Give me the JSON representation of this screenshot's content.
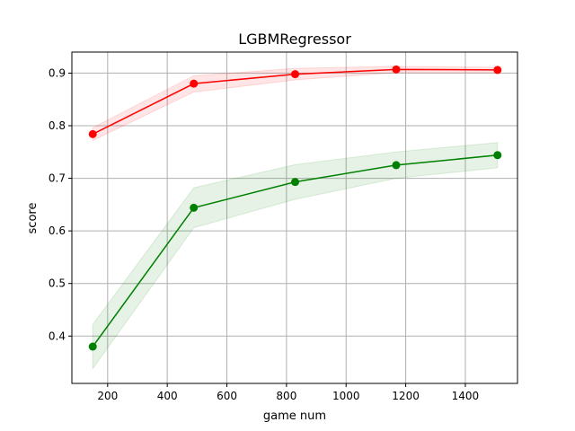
{
  "chart_data": {
    "type": "line",
    "title": "LGBMRegressor",
    "xlabel": "game num",
    "ylabel": "score",
    "xlim": [
      80,
      1575
    ],
    "ylim": [
      0.31,
      0.94
    ],
    "xticks": [
      200,
      400,
      600,
      800,
      1000,
      1200,
      1400
    ],
    "yticks": [
      0.4,
      0.5,
      0.6,
      0.7,
      0.8,
      0.9
    ],
    "grid": true,
    "x": [
      150,
      489,
      829,
      1168,
      1508
    ],
    "series": [
      {
        "color": "#ff0000",
        "values": [
          0.784,
          0.88,
          0.898,
          0.907,
          0.906
        ],
        "band_lower": [
          0.772,
          0.864,
          0.887,
          0.901,
          0.901
        ],
        "band_upper": [
          0.796,
          0.895,
          0.909,
          0.913,
          0.911
        ]
      },
      {
        "color": "#008000",
        "values": [
          0.38,
          0.644,
          0.693,
          0.725,
          0.744
        ],
        "band_lower": [
          0.338,
          0.606,
          0.66,
          0.7,
          0.72
        ],
        "band_upper": [
          0.422,
          0.682,
          0.726,
          0.75,
          0.768
        ]
      }
    ]
  }
}
